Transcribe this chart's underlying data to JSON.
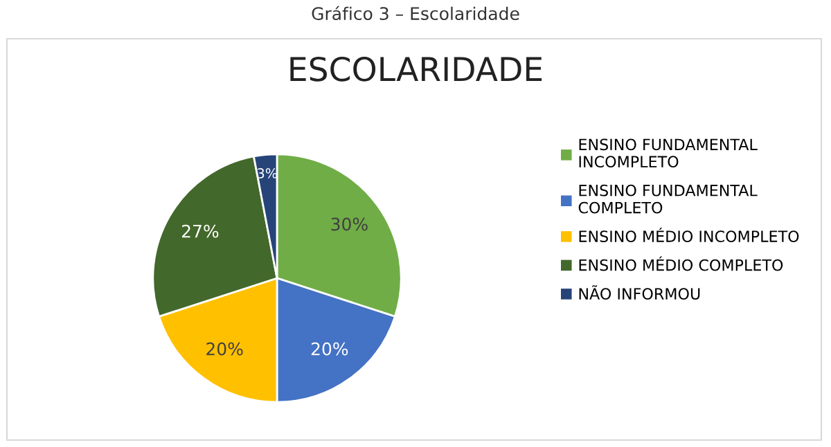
{
  "chart_data": {
    "type": "pie",
    "title": "ESCOLARIDADE",
    "annotations": [
      "Gráfico 3 – Escolaridade"
    ],
    "categories": [
      "ENSINO FUNDAMENTAL INCOMPLETO",
      "ENSINO FUNDAMENTAL COMPLETO",
      "ENSINO MÉDIO INCOMPLETO",
      "ENSINO MÉDIO COMPLETO",
      "NÃO INFORMOU"
    ],
    "values": [
      30,
      20,
      20,
      27,
      3
    ],
    "colors": [
      "#70ad47",
      "#4472c4",
      "#ffc000",
      "#43682b",
      "#264478"
    ],
    "value_labels": [
      "30%",
      "20%",
      "20%",
      "27%",
      "3%"
    ],
    "legend": "right"
  }
}
